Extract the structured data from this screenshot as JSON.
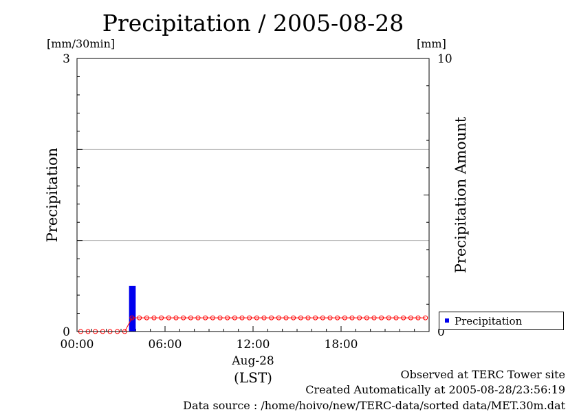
{
  "page": {
    "title": "Precipitation / 2005-08-28",
    "unit_left": "[mm/30min]",
    "unit_right": "[mm]",
    "footer": {
      "observed": "Observed at TERC Tower site",
      "created": "Created Automatically at 2005-08-28/23:56:19",
      "source": "Data source : /home/hoivo/new/TERC-data/sorted  data/MET.30m.dat"
    }
  },
  "chart_data": {
    "type": "bar",
    "title": "Precipitation / 2005-08-28",
    "ylabel": "Precipitation",
    "y2label": "Precipitation Amount",
    "ylim": [
      0,
      3
    ],
    "y2lim": [
      0,
      10
    ],
    "xlabel": "(LST)",
    "x_date_label": "Aug-28",
    "x_tick_labels": [
      "00:00",
      "06:00",
      "12:00",
      "18:00"
    ],
    "y_tick_labels": [
      "0",
      "3"
    ],
    "y2_tick_labels": [
      "0",
      "10"
    ],
    "grid": true,
    "legend_position": "bottom-right, outside plot",
    "x_times": [
      "00:00",
      "00:30",
      "01:00",
      "01:30",
      "02:00",
      "02:30",
      "03:00",
      "03:30",
      "04:00",
      "04:30",
      "05:00",
      "05:30",
      "06:00",
      "06:30",
      "07:00",
      "07:30",
      "08:00",
      "08:30",
      "09:00",
      "09:30",
      "10:00",
      "10:30",
      "11:00",
      "11:30",
      "12:00",
      "12:30",
      "13:00",
      "13:30",
      "14:00",
      "14:30",
      "15:00",
      "15:30",
      "16:00",
      "16:30",
      "17:00",
      "17:30",
      "18:00",
      "18:30",
      "19:00",
      "19:30",
      "20:00",
      "20:30",
      "21:00",
      "21:30",
      "22:00",
      "22:30",
      "23:00",
      "23:30"
    ],
    "series": [
      {
        "name": "Precipitation",
        "kind": "bar",
        "axis": "left",
        "color": "#0000ee",
        "values": [
          0,
          0,
          0,
          0,
          0,
          0,
          0,
          0.5,
          0,
          0,
          0,
          0,
          0,
          0,
          0,
          0,
          0,
          0,
          0,
          0,
          0,
          0,
          0,
          0,
          0,
          0,
          0,
          0,
          0,
          0,
          0,
          0,
          0,
          0,
          0,
          0,
          0,
          0,
          0,
          0,
          0,
          0,
          0,
          0,
          0,
          0,
          0,
          0
        ]
      },
      {
        "kind": "line-markers",
        "axis": "right",
        "color": "#ff0000",
        "values": [
          0,
          0,
          0,
          0,
          0,
          0,
          0,
          0.5,
          0.5,
          0.5,
          0.5,
          0.5,
          0.5,
          0.5,
          0.5,
          0.5,
          0.5,
          0.5,
          0.5,
          0.5,
          0.5,
          0.5,
          0.5,
          0.5,
          0.5,
          0.5,
          0.5,
          0.5,
          0.5,
          0.5,
          0.5,
          0.5,
          0.5,
          0.5,
          0.5,
          0.5,
          0.5,
          0.5,
          0.5,
          0.5,
          0.5,
          0.5,
          0.5,
          0.5,
          0.5,
          0.5,
          0.5,
          0.5
        ]
      }
    ]
  }
}
